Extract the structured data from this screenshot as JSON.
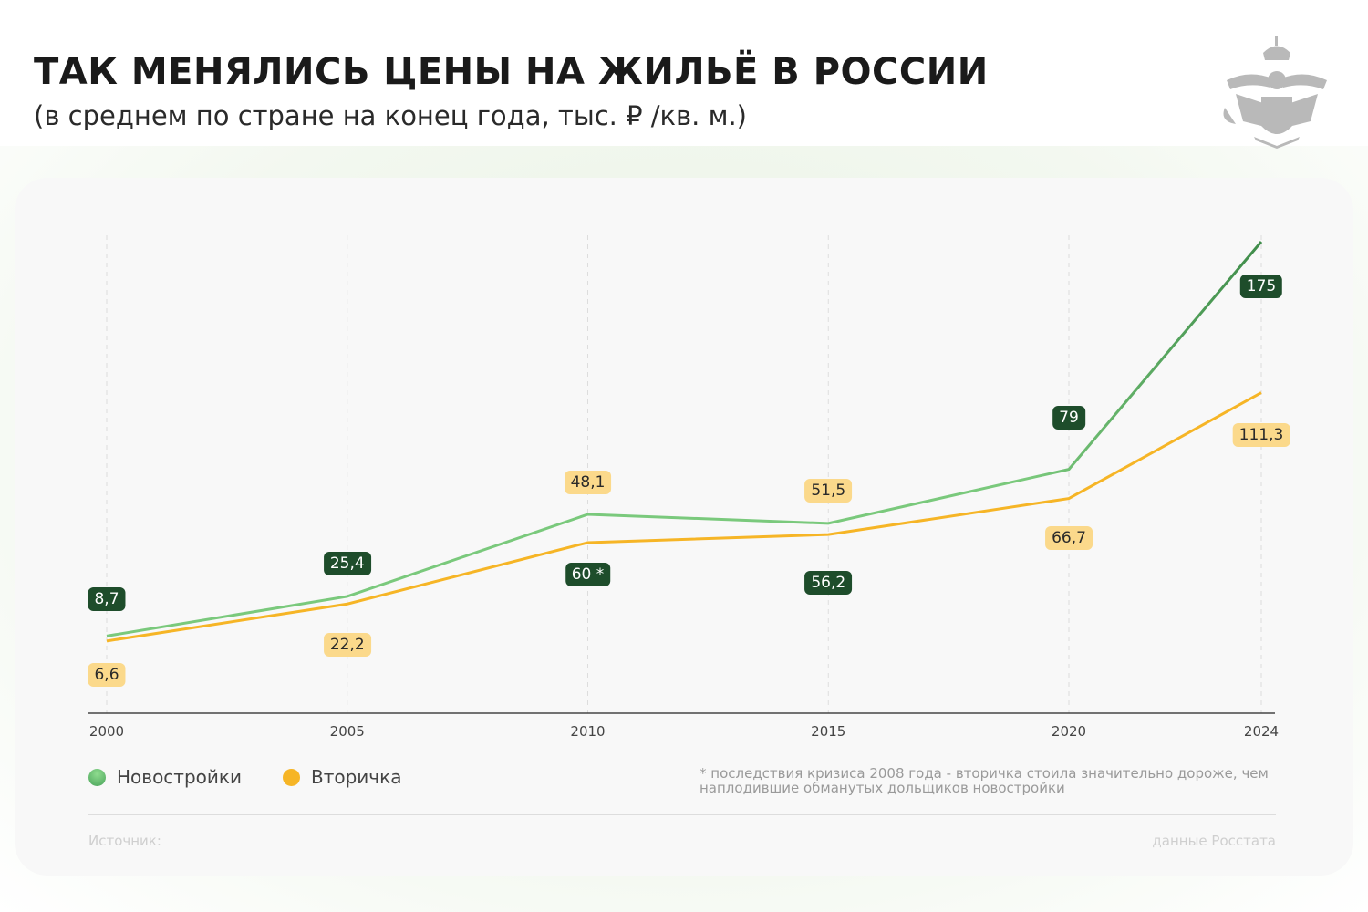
{
  "header": {
    "title": "ТАК МЕНЯЛИСЬ ЦЕНЫ НА ЖИЛЬЁ В РОССИИ",
    "subtitle": "(в среднем по стране на конец года, тыс. ₽ /кв. м.)",
    "logo": "coat-of-arms"
  },
  "chart_data": {
    "type": "line",
    "x": [
      2000,
      2005,
      2010,
      2015,
      2020,
      2024
    ],
    "tick_labels": [
      "2000",
      "2005",
      "2010",
      "2015",
      "2020",
      "2024"
    ],
    "grid": "vertical dashed",
    "legend": "bottom-left",
    "series": [
      {
        "name": "Новостройки",
        "color": "#7ac97c",
        "line_color_end": "#3f8c4a",
        "values": [
          8.7,
          25.4,
          60,
          56.2,
          79,
          175
        ],
        "labels": [
          "8,7",
          "25,4",
          "60 *",
          "56,2",
          "79",
          "175"
        ]
      },
      {
        "name": "Вторичка",
        "color": "#f6b526",
        "values": [
          6.6,
          22.2,
          48.1,
          51.5,
          66.7,
          111.3
        ],
        "labels": [
          "6,6",
          "22,2",
          "48,1",
          "51,5",
          "66,7",
          "111,3"
        ]
      }
    ]
  },
  "footnote": "* последствия кризиса 2008 года - вторичка стоила значительно дороже, чем наплодившие обманутых дольщиков новостройки",
  "source": {
    "label": "Источник:",
    "value": "данные Росстата"
  }
}
